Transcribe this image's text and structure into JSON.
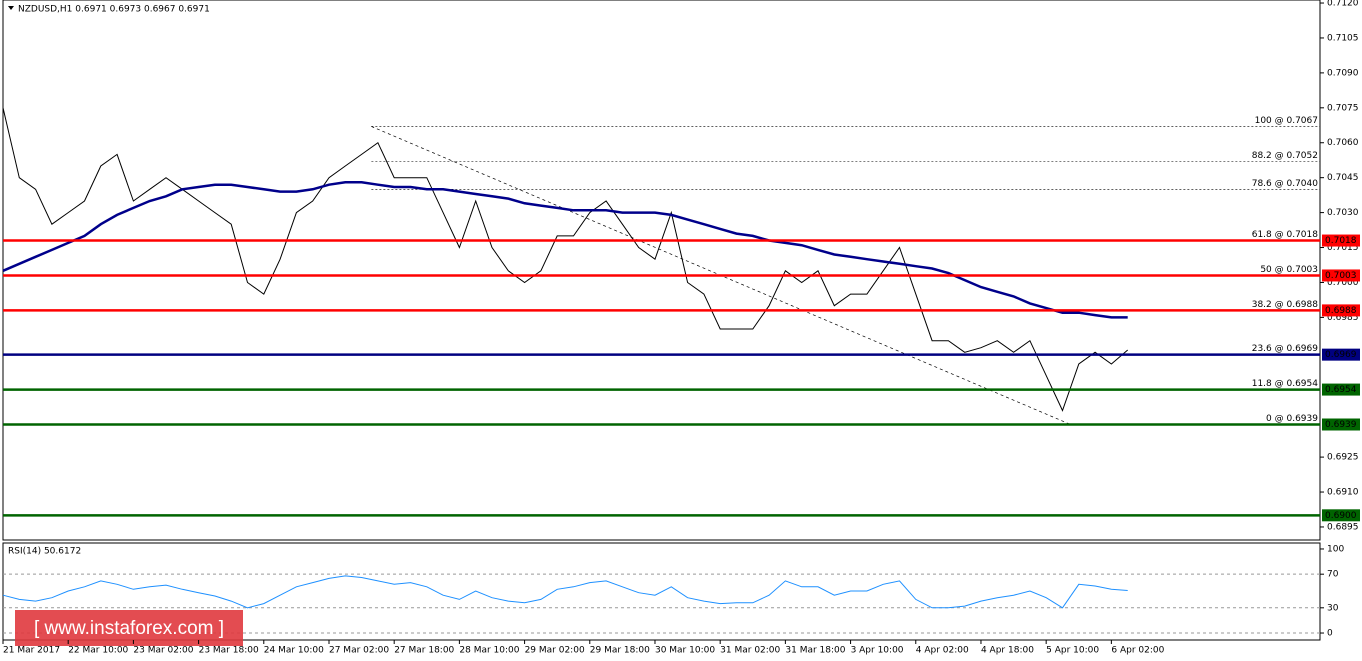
{
  "chart_data": [
    {
      "type": "line",
      "title": "NZDUSD,H1  0.6971 0.6973 0.6967 0.6971",
      "categories": [
        "21 Mar 2017",
        null,
        null,
        null,
        "22 Mar 10:00",
        null,
        null,
        null,
        "23 Mar 02:00",
        null,
        null,
        null,
        "23 Mar 18:00",
        null,
        null,
        null,
        "24 Mar 10:00",
        null,
        null,
        null,
        "27 Mar 02:00",
        null,
        null,
        null,
        "27 Mar 18:00",
        null,
        null,
        null,
        "28 Mar 10:00",
        null,
        null,
        null,
        "29 Mar 02:00",
        null,
        null,
        null,
        "29 Mar 18:00",
        null,
        null,
        null,
        "30 Mar 10:00",
        null,
        null,
        null,
        "31 Mar 02:00",
        null,
        null,
        null,
        "31 Mar 18:00",
        null,
        null,
        null,
        "3 Apr 10:00",
        null,
        null,
        null,
        "4 Apr 02:00",
        null,
        null,
        null,
        "4 Apr 18:00",
        null,
        null,
        null,
        "5 Apr 10:00",
        null,
        null,
        null,
        "6 Apr 02:00",
        null
      ],
      "series": [
        {
          "color": "#000000",
          "values": [
            0.7075,
            0.7045,
            0.704,
            0.7025,
            0.703,
            0.7035,
            0.705,
            0.7055,
            0.7035,
            0.704,
            0.7045,
            0.704,
            0.7035,
            0.703,
            0.7025,
            0.7,
            0.6995,
            0.701,
            0.703,
            0.7035,
            0.7045,
            0.705,
            0.7055,
            0.706,
            0.7045,
            0.7045,
            0.7045,
            0.703,
            0.7015,
            0.7035,
            0.7015,
            0.7005,
            0.7,
            0.7005,
            0.702,
            0.702,
            0.703,
            0.7035,
            0.7025,
            0.7015,
            0.701,
            0.703,
            0.7,
            0.6995,
            0.698,
            0.698,
            0.698,
            0.699,
            0.7005,
            0.7,
            0.7005,
            0.699,
            0.6995,
            0.6995,
            0.7005,
            0.7015,
            0.6995,
            0.6975,
            0.6975,
            0.697,
            0.6972,
            0.6975,
            0.697,
            0.6975,
            0.696,
            0.6945,
            0.6965,
            0.697,
            0.6965,
            0.6971
          ]
        },
        {
          "color": "#00008b",
          "values": [
            0.7005,
            0.7008,
            0.7011,
            0.7014,
            0.7017,
            0.702,
            0.7025,
            0.7029,
            0.7032,
            0.7035,
            0.7037,
            0.704,
            0.7041,
            0.7042,
            0.7042,
            0.7041,
            0.704,
            0.7039,
            0.7039,
            0.704,
            0.7042,
            0.7043,
            0.7043,
            0.7042,
            0.7041,
            0.7041,
            0.704,
            0.704,
            0.7039,
            0.7038,
            0.7037,
            0.7036,
            0.7034,
            0.7033,
            0.7032,
            0.7031,
            0.7031,
            0.7031,
            0.703,
            0.703,
            0.703,
            0.7029,
            0.7027,
            0.7025,
            0.7023,
            0.7021,
            0.702,
            0.7018,
            0.7017,
            0.7016,
            0.7014,
            0.7012,
            0.7011,
            0.701,
            0.7009,
            0.7008,
            0.7007,
            0.7006,
            0.7004,
            0.7001,
            0.6998,
            0.6996,
            0.6994,
            0.6991,
            0.6989,
            0.6987,
            0.6987,
            0.6986,
            0.6985,
            0.6985
          ]
        }
      ],
      "ylim": [
        0.68894,
        0.71213
      ],
      "yticks": [
        {
          "value": 0.712,
          "label": "0.7120"
        },
        {
          "value": 0.7105,
          "label": "0.7105"
        },
        {
          "value": 0.709,
          "label": "0.7090"
        },
        {
          "value": 0.7075,
          "label": "0.7075"
        },
        {
          "value": 0.706,
          "label": "0.7060"
        },
        {
          "value": 0.7045,
          "label": "0.7045"
        },
        {
          "value": 0.703,
          "label": "0.7030"
        },
        {
          "value": 0.7015,
          "label": "0.7015"
        },
        {
          "value": 0.7,
          "label": "0.7000"
        },
        {
          "value": 0.6985,
          "label": "0.6985"
        },
        {
          "value": 0.6925,
          "label": "0.6925"
        },
        {
          "value": 0.691,
          "label": "0.6910"
        },
        {
          "value": 0.6895,
          "label": "0.6895"
        }
      ],
      "levels": [
        {
          "value": 0.7018,
          "label": "0.7018",
          "color": "#ff0000"
        },
        {
          "value": 0.7003,
          "label": "0.7003",
          "color": "#ff0000"
        },
        {
          "value": 0.6988,
          "label": "0.6988",
          "color": "#ff0000"
        },
        {
          "value": 0.6969,
          "label": "0.6969",
          "color": "#000080"
        },
        {
          "value": 0.6954,
          "label": "0.6954",
          "color": "#006400"
        },
        {
          "value": 0.6939,
          "label": "0.6939",
          "color": "#006400"
        },
        {
          "value": 0.69,
          "label": "0.6900",
          "color": "#006400"
        }
      ],
      "fibonacci": [
        {
          "value": 0.7067,
          "label": "100 @ 0.7067"
        },
        {
          "value": 0.7052,
          "label": "88.2 @ 0.7052"
        },
        {
          "value": 0.704,
          "label": "78.6 @ 0.7040"
        },
        {
          "value": 0.7018,
          "label": "61.8 @ 0.7018"
        },
        {
          "value": 0.7003,
          "label": "50 @ 0.7003"
        },
        {
          "value": 0.6988,
          "label": "38.2 @ 0.6988"
        },
        {
          "value": 0.6969,
          "label": "23.6 @ 0.6969"
        },
        {
          "value": 0.6954,
          "label": "11.8 @ 0.6954"
        },
        {
          "value": 0.6939,
          "label": "0 @ 0.6939"
        }
      ]
    },
    {
      "type": "line",
      "title": "RSI(14) 50.6172",
      "ylim": [
        -8.3,
        107.1
      ],
      "yticks": [
        0,
        30,
        70,
        100
      ],
      "series": [
        {
          "color": "#1e90ff",
          "values": [
            45,
            40,
            38,
            42,
            50,
            55,
            62,
            58,
            52,
            55,
            57,
            52,
            48,
            44,
            38,
            30,
            35,
            45,
            55,
            60,
            65,
            68,
            66,
            62,
            58,
            60,
            55,
            45,
            40,
            50,
            42,
            38,
            36,
            40,
            52,
            55,
            60,
            62,
            55,
            48,
            45,
            55,
            42,
            38,
            35,
            36,
            36,
            45,
            62,
            55,
            55,
            45,
            50,
            50,
            58,
            62,
            40,
            30,
            30,
            32,
            38,
            42,
            45,
            50,
            42,
            30,
            58,
            56,
            52,
            50.6
          ]
        }
      ]
    }
  ],
  "watermark": "[ www.instaforex.com ]"
}
